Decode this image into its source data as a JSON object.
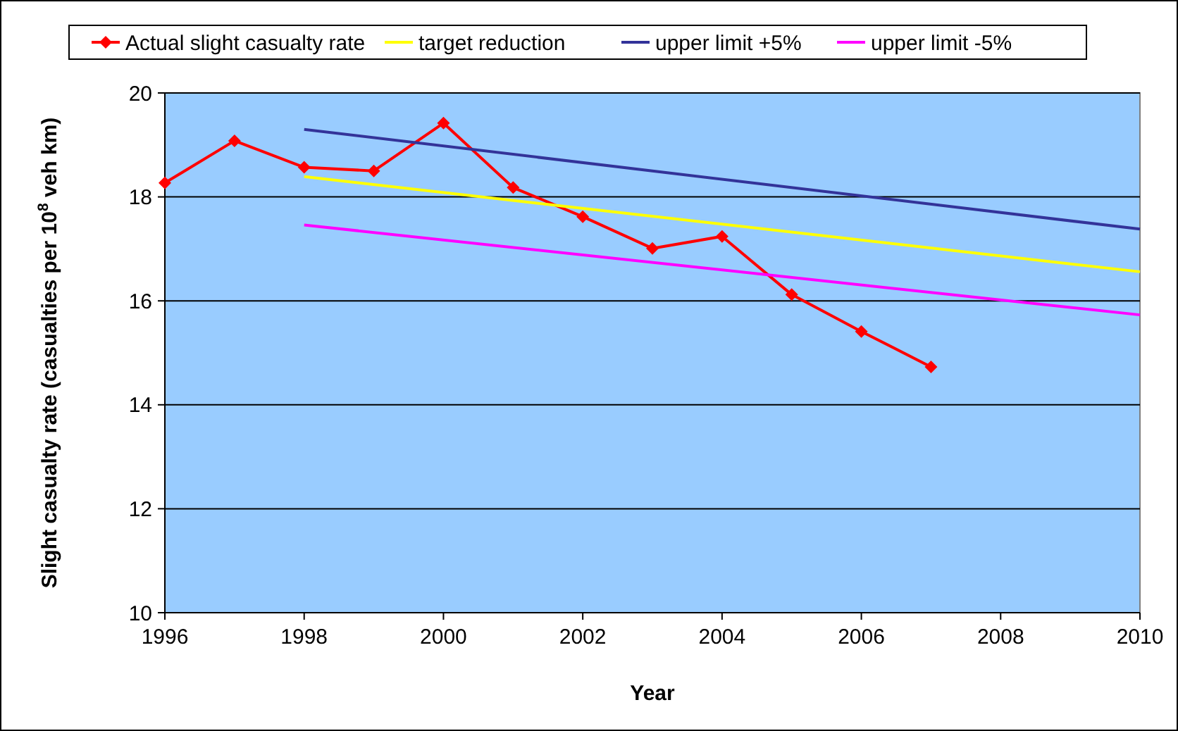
{
  "chart_data": {
    "type": "line",
    "xlabel": "Year",
    "ylabel": "Slight casualty rate (casualties per 10$^{8}$ veh km)",
    "xlim": [
      1996,
      2010
    ],
    "xticks": [
      1996,
      1998,
      2000,
      2002,
      2004,
      2006,
      2008,
      2010
    ],
    "ylim": [
      10,
      20
    ],
    "yticks": [
      10,
      12,
      14,
      16,
      18,
      20
    ],
    "grid": "y",
    "legend": "top",
    "line_style": "solid",
    "series": [
      {
        "name": "Actual slight casualty rate",
        "color": "#ff0000",
        "marker": "diamond",
        "x": [
          1996,
          1997,
          1998,
          1999,
          2000,
          2001,
          2002,
          2003,
          2004,
          2005,
          2006,
          2007
        ],
        "values": [
          18.27,
          19.08,
          18.57,
          18.5,
          19.42,
          18.18,
          17.62,
          17.01,
          17.24,
          16.12,
          15.41,
          14.73
        ]
      },
      {
        "name": "target reduction",
        "color": "#ffff00",
        "marker": "none",
        "x": [
          1998,
          2010
        ],
        "values": [
          18.39,
          16.56
        ]
      },
      {
        "name": "upper limit +5%",
        "color": "#333399",
        "marker": "none",
        "x": [
          1998,
          2010
        ],
        "values": [
          19.3,
          17.38
        ]
      },
      {
        "name": "upper limit -5%",
        "color": "#ff00ff",
        "marker": "none",
        "x": [
          1998,
          2010
        ],
        "values": [
          17.46,
          15.73
        ]
      }
    ]
  }
}
